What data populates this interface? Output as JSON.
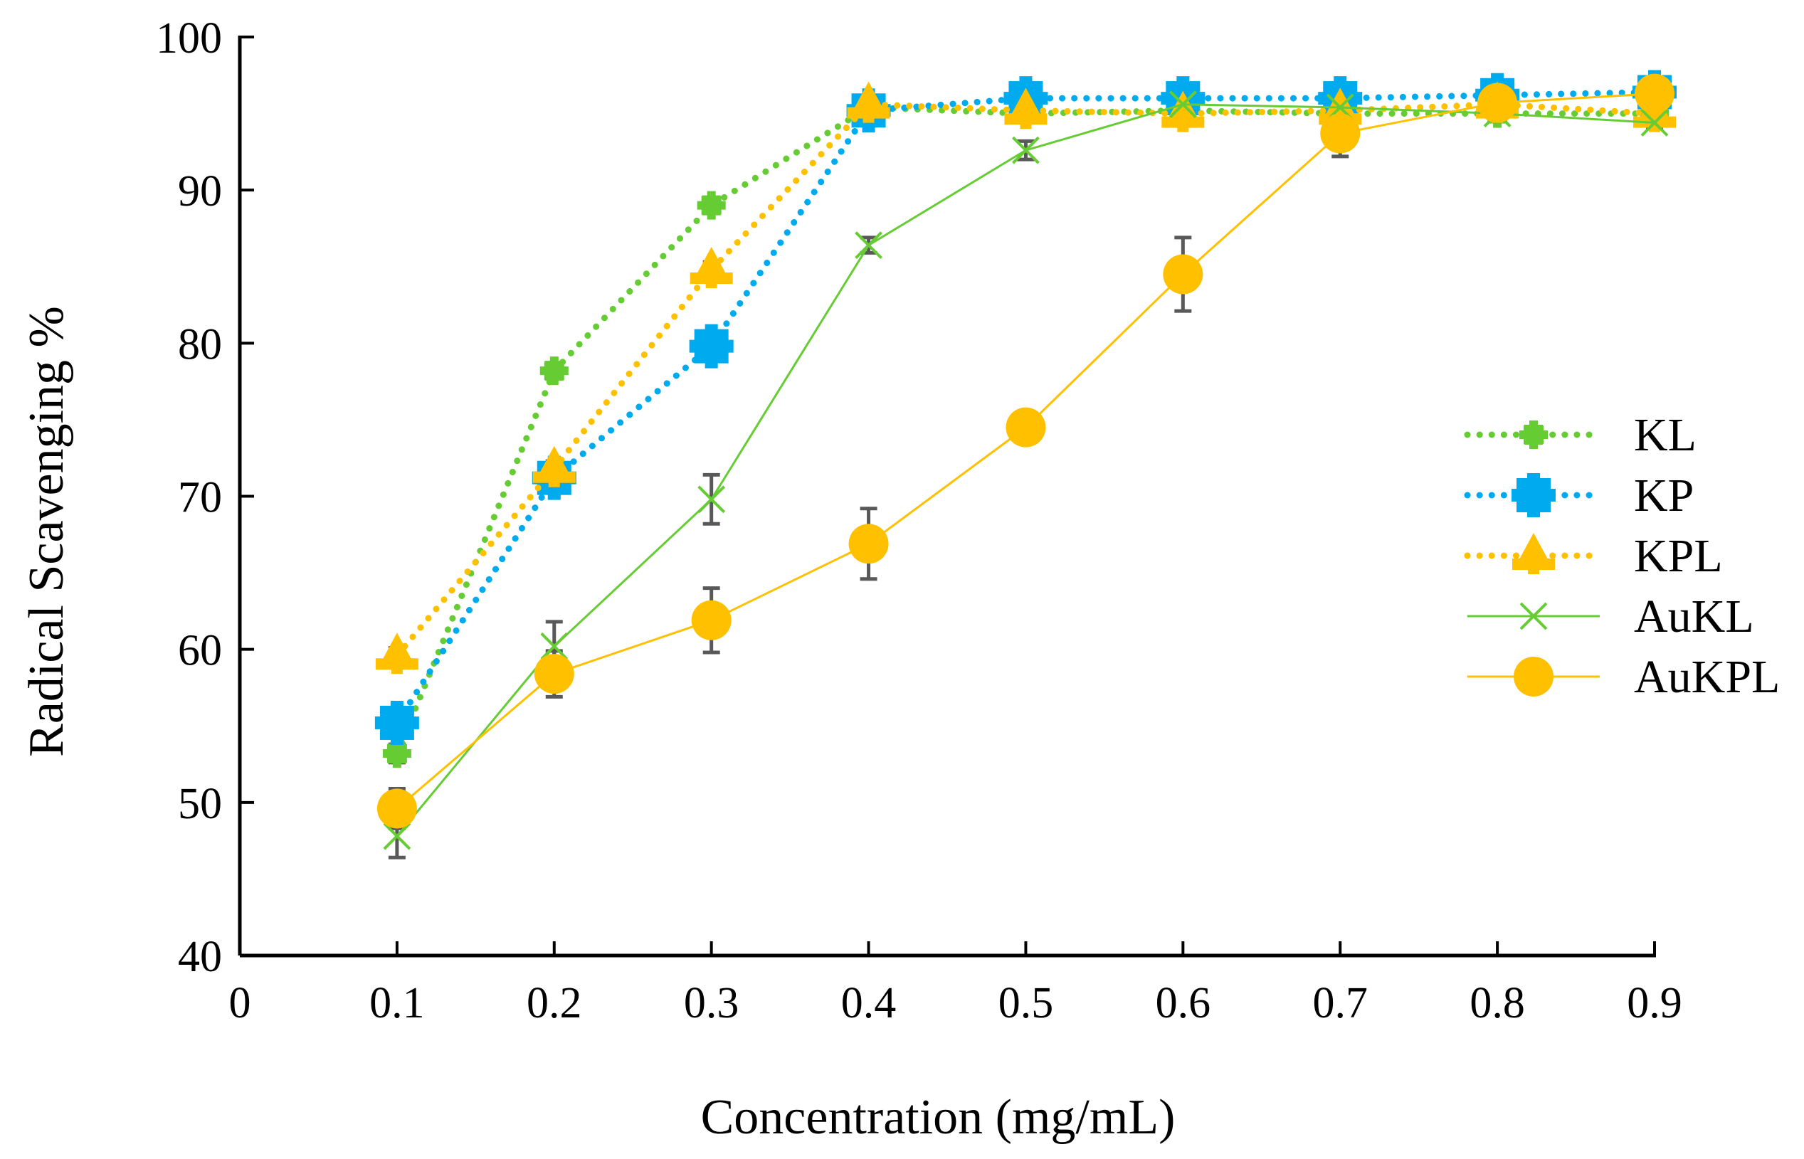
{
  "chart_data": {
    "type": "line",
    "title": "",
    "xlabel": "Concentration (mg/mL)",
    "ylabel": "Radical Scavenging %",
    "xlim": [
      0,
      0.9
    ],
    "ylim": [
      40,
      100
    ],
    "x_ticks": [
      "0",
      "0.1",
      "0.2",
      "0.3",
      "0.4",
      "0.5",
      "0.6",
      "0.7",
      "0.8",
      "0.9"
    ],
    "y_ticks": [
      "40",
      "50",
      "60",
      "70",
      "80",
      "90",
      "100"
    ],
    "legend_position": "right",
    "series": [
      {
        "name": "KL",
        "color": "#66cc33",
        "line": "dotted",
        "marker": "cross",
        "x": [
          0.1,
          0.2,
          0.3,
          0.4,
          0.5,
          0.6,
          0.7,
          0.8,
          0.9
        ],
        "values": [
          53.2,
          78.2,
          89.0,
          95.4,
          95.0,
          95.2,
          95.0,
          95.0,
          95.0
        ],
        "errors": [
          0.6,
          0.5,
          0.4,
          0.4,
          0.3,
          0.3,
          0.3,
          0.3,
          0.3
        ]
      },
      {
        "name": "KP",
        "color": "#00aaee",
        "line": "dotted",
        "marker": "square",
        "x": [
          0.1,
          0.2,
          0.3,
          0.4,
          0.5,
          0.6,
          0.7,
          0.8,
          0.9
        ],
        "values": [
          55.2,
          71.2,
          79.8,
          95.2,
          96.0,
          96.0,
          96.0,
          96.2,
          96.4
        ],
        "errors": [
          0.5,
          0.5,
          0.5,
          0.4,
          0.3,
          0.3,
          0.3,
          0.3,
          0.3
        ]
      },
      {
        "name": "KPL",
        "color": "#ffc000",
        "line": "dotted",
        "marker": "triangle",
        "x": [
          0.1,
          0.2,
          0.3,
          0.4,
          0.5,
          0.6,
          0.7,
          0.8,
          0.9
        ],
        "values": [
          59.6,
          71.8,
          84.8,
          95.6,
          95.2,
          95.0,
          95.2,
          95.6,
          95.0
        ],
        "errors": [
          0.5,
          0.5,
          0.5,
          0.4,
          0.4,
          0.3,
          0.3,
          0.3,
          0.3
        ]
      },
      {
        "name": "AuKL",
        "color": "#66cc33",
        "line": "solid",
        "marker": "x",
        "x": [
          0.1,
          0.2,
          0.3,
          0.4,
          0.5,
          0.6,
          0.7,
          0.8,
          0.9
        ],
        "values": [
          47.8,
          60.2,
          69.8,
          86.4,
          92.6,
          95.6,
          95.4,
          95.0,
          94.4
        ],
        "errors": [
          1.4,
          1.6,
          1.6,
          0.5,
          0.6,
          0.5,
          0.4,
          0.3,
          0.3
        ]
      },
      {
        "name": "AuKPL",
        "color": "#ffc000",
        "line": "solid",
        "marker": "circle",
        "x": [
          0.1,
          0.2,
          0.3,
          0.4,
          0.5,
          0.6,
          0.7,
          0.8,
          0.9
        ],
        "values": [
          49.6,
          58.4,
          61.9,
          66.9,
          74.5,
          84.5,
          93.7,
          95.7,
          96.3
        ],
        "errors": [
          1.3,
          1.5,
          2.1,
          2.3,
          0.9,
          2.4,
          1.5,
          0.5,
          0.4
        ]
      }
    ]
  }
}
